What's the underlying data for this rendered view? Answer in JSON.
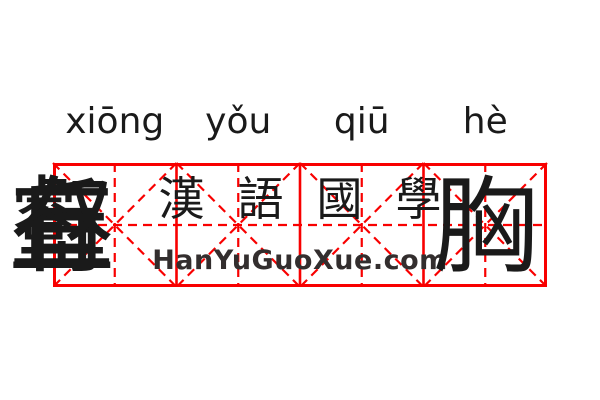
{
  "idiom": {
    "pinyin": [
      "xiōng",
      "yǒu",
      "qiū",
      "hè"
    ],
    "characters": [
      "胸",
      "有",
      "丘",
      "壑"
    ]
  },
  "watermark": {
    "site_name": "漢語國學",
    "site_url": "HanYuGuoXue.com"
  },
  "grid": {
    "cells": 4,
    "style": "mi-zi-ge"
  },
  "colors": {
    "grid_red": "#f80000",
    "ink": "#1a1a1a",
    "watermark_text": "#332e2e",
    "background": "#ffffff"
  }
}
